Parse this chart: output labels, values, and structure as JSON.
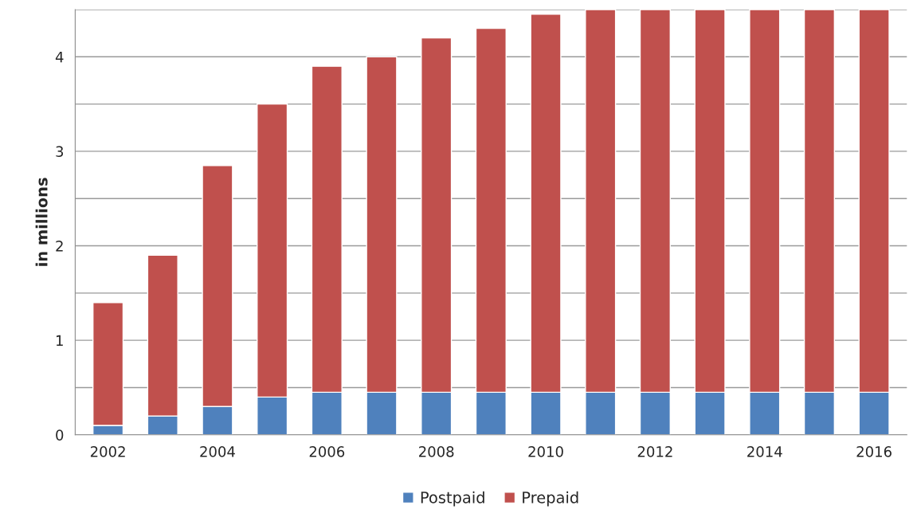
{
  "chart_data": {
    "type": "bar",
    "stacked": true,
    "ylabel": "in millions",
    "categories": [
      "2002",
      null,
      "2004",
      null,
      "2006",
      null,
      "2008",
      null,
      "2010",
      null,
      "2012",
      null,
      "2014",
      null,
      "2016"
    ],
    "series": [
      {
        "name": "Postpaid",
        "color": "#4f81bd",
        "values": [
          0.1,
          0.2,
          0.3,
          0.4,
          0.45,
          0.45,
          0.45,
          0.45,
          0.45,
          0.45,
          0.45,
          0.45,
          0.45,
          0.45,
          0.45
        ]
      },
      {
        "name": "Prepaid",
        "color": "#c0504d",
        "values": [
          1.3,
          1.7,
          2.55,
          3.1,
          3.45,
          3.55,
          3.75,
          3.85,
          4.0,
          4.05,
          4.05,
          4.05,
          4.05,
          4.05,
          4.05
        ]
      }
    ],
    "ylim": [
      0,
      4.5
    ],
    "yticks": [
      0,
      {
        "value": 0.5,
        "label": null
      },
      1,
      {
        "value": 1.5,
        "label": null
      },
      2,
      {
        "value": 2.5,
        "label": null
      },
      3,
      {
        "value": 3.5,
        "label": null
      },
      4,
      {
        "value": 4.5,
        "label": null
      }
    ],
    "grid": "y",
    "legend": "bottom"
  }
}
